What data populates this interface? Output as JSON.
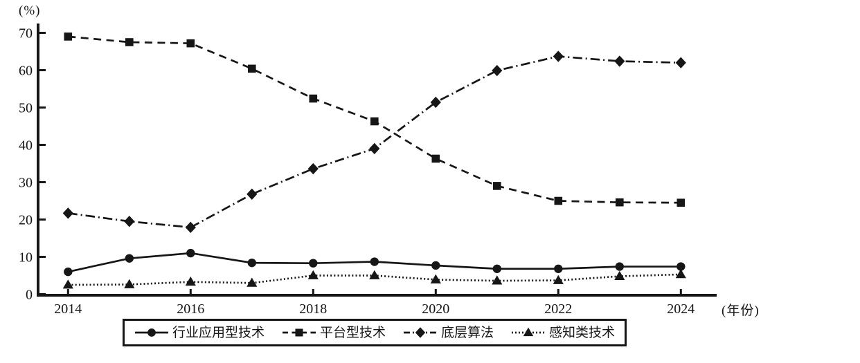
{
  "chart_data": {
    "type": "line",
    "title": "",
    "xlabel": "(年份)",
    "ylabel": "(%)",
    "x": [
      2014,
      2015,
      2016,
      2017,
      2018,
      2019,
      2020,
      2021,
      2022,
      2023,
      2024
    ],
    "xticks": [
      2014,
      2016,
      2018,
      2020,
      2022,
      2024
    ],
    "yticks": [
      0,
      10,
      20,
      30,
      40,
      50,
      60,
      70
    ],
    "ylim": [
      0,
      70
    ],
    "grid": false,
    "legend_position": "bottom",
    "line_color": "#161616",
    "background_color": "#ffffff",
    "series": [
      {
        "name": "行业应用型技术",
        "marker": "circle",
        "line_style": "solid",
        "values": [
          6,
          9.6,
          11,
          8.4,
          8.3,
          8.7,
          7.7,
          6.8,
          6.8,
          7.4,
          7.4
        ]
      },
      {
        "name": "平台型技术",
        "marker": "square",
        "line_style": "dashed",
        "values": [
          69,
          67.5,
          67.2,
          60.4,
          52.4,
          46.3,
          36.3,
          29,
          25,
          24.6,
          24.5
        ]
      },
      {
        "name": "底层算法",
        "marker": "diamond",
        "line_style": "dashdot",
        "values": [
          21.7,
          19.5,
          17.9,
          26.8,
          33.6,
          39,
          51.4,
          59.9,
          63.7,
          62.4,
          62
        ]
      },
      {
        "name": "感知类技术",
        "marker": "triangle",
        "line_style": "dotted",
        "values": [
          2.5,
          2.6,
          3.3,
          3,
          5,
          5,
          3.9,
          3.6,
          3.7,
          4.8,
          5.3
        ]
      }
    ]
  }
}
